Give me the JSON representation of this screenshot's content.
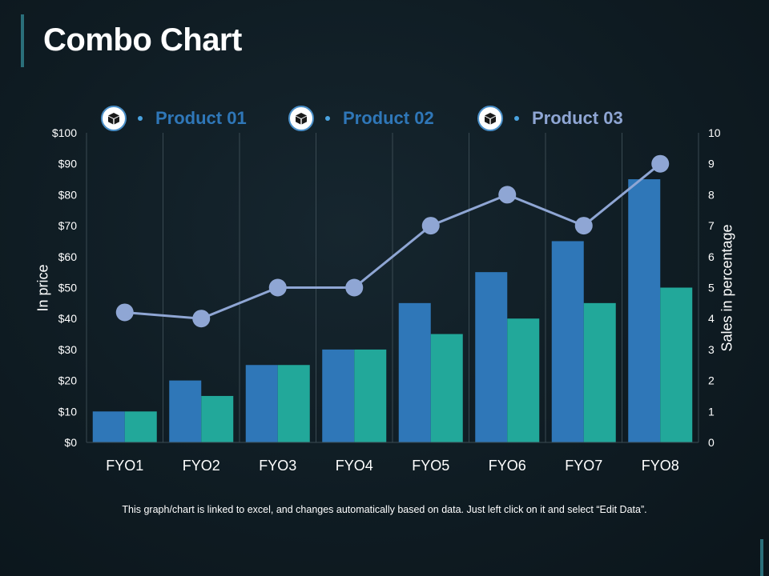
{
  "title": "Combo Chart",
  "legend": [
    {
      "label": "Product 01",
      "icon": "box-icon"
    },
    {
      "label": "Product 02",
      "icon": "box-icon"
    },
    {
      "label": "Product 03",
      "icon": "box-icon"
    }
  ],
  "footnote": "This graph/chart is linked to excel, and changes automatically based on data. Just left click on it and select “Edit Data”.",
  "colors": {
    "product01": "#2f77b8",
    "product02": "#22a89a",
    "product03": "#8fa6d4"
  },
  "chart_data": {
    "type": "combo",
    "title": "Combo Chart",
    "categories": [
      "FYO1",
      "FYO2",
      "FYO3",
      "FYO4",
      "FYO5",
      "FYO6",
      "FYO7",
      "FYO8"
    ],
    "series": [
      {
        "name": "Product 01",
        "type": "bar",
        "axis": "left",
        "values": [
          10,
          20,
          25,
          30,
          45,
          55,
          65,
          85
        ]
      },
      {
        "name": "Product 02",
        "type": "bar",
        "axis": "left",
        "values": [
          10,
          15,
          25,
          30,
          35,
          40,
          45,
          50
        ]
      },
      {
        "name": "Product 03",
        "type": "line",
        "axis": "right",
        "values": [
          4.2,
          4.0,
          5,
          5,
          7,
          8,
          7,
          9
        ]
      }
    ],
    "ylabel": "In price",
    "y2label": "Sales in percentage",
    "ylim": [
      0,
      100
    ],
    "y2lim": [
      0,
      10
    ],
    "yticks": [
      "$0",
      "$10",
      "$20",
      "$30",
      "$40",
      "$50",
      "$60",
      "$70",
      "$80",
      "$90",
      "$100"
    ],
    "y2ticks": [
      "0",
      "1",
      "2",
      "3",
      "4",
      "5",
      "6",
      "7",
      "8",
      "9",
      "10"
    ]
  }
}
